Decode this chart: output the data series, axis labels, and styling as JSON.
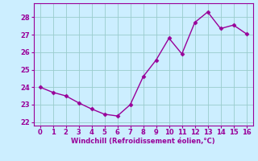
{
  "x": [
    0,
    1,
    2,
    3,
    4,
    5,
    6,
    7,
    8,
    9,
    10,
    11,
    12,
    13,
    14,
    15,
    16
  ],
  "y": [
    24.0,
    23.7,
    23.5,
    23.1,
    22.75,
    22.45,
    22.35,
    23.0,
    24.6,
    25.55,
    26.8,
    25.9,
    27.7,
    28.3,
    27.35,
    27.55,
    27.05
  ],
  "line_color": "#990099",
  "marker": "D",
  "marker_size": 2.5,
  "line_width": 1.0,
  "bg_color": "#cceeff",
  "grid_color": "#99cccc",
  "xlabel": "Windchill (Refroidissement éolien,°C)",
  "xlabel_color": "#990099",
  "tick_color": "#990099",
  "xlim": [
    -0.5,
    16.5
  ],
  "ylim": [
    21.8,
    28.8
  ],
  "yticks": [
    22,
    23,
    24,
    25,
    26,
    27,
    28
  ],
  "xticks": [
    0,
    1,
    2,
    3,
    4,
    5,
    6,
    7,
    8,
    9,
    10,
    11,
    12,
    13,
    14,
    15,
    16
  ],
  "spine_color": "#990099",
  "label_fontsize": 6.0,
  "tick_fontsize": 6.0
}
